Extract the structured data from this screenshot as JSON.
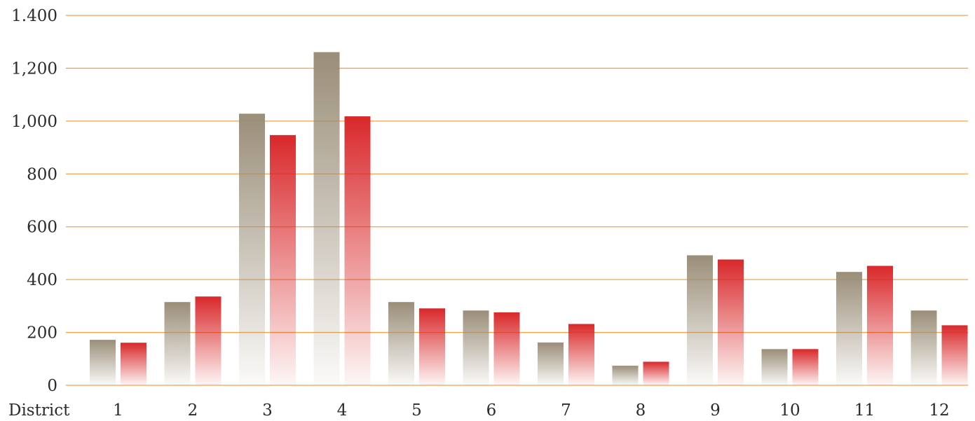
{
  "chart_data": {
    "type": "bar",
    "title": "",
    "xlabel": "District",
    "ylabel": "",
    "ylim": [
      0,
      1400
    ],
    "yticks": [
      0,
      200,
      400,
      600,
      800,
      1000,
      1200,
      1400
    ],
    "ytick_labels": [
      "0",
      "200",
      "400",
      "600",
      "800",
      "1,000",
      "1,200",
      "1.400"
    ],
    "grid": true,
    "legend": "none",
    "categories": [
      "1",
      "2",
      "3",
      "4",
      "5",
      "6",
      "7",
      "8",
      "9",
      "10",
      "11",
      "12"
    ],
    "series": [
      {
        "values": [
          172,
          315,
          1028,
          1261,
          315,
          283,
          162,
          74,
          492,
          137,
          429,
          283
        ],
        "color": "#9a8e78"
      },
      {
        "values": [
          161,
          336,
          947,
          1018,
          291,
          276,
          232,
          89,
          476,
          137,
          452,
          227
        ],
        "color": "#d9282a"
      }
    ],
    "gridline_color": "#f3a24a"
  }
}
